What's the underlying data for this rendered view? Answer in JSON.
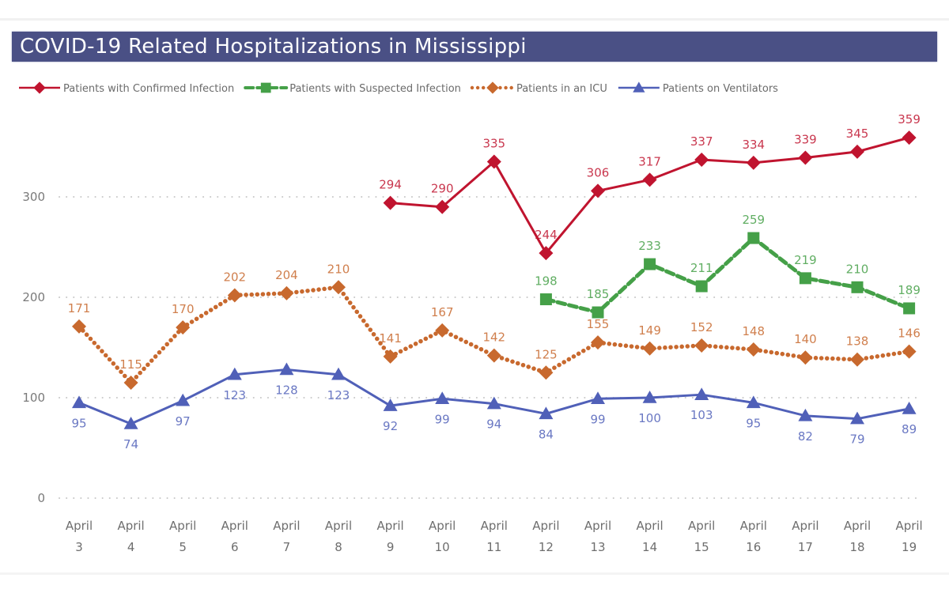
{
  "chart_data": {
    "type": "line",
    "title": "COVID-19 Related Hospitalizations in Mississippi",
    "xlabel": "",
    "ylabel": "",
    "ylim": [
      0,
      360
    ],
    "yticks": [
      0,
      100,
      200,
      300
    ],
    "grid": true,
    "legend_position": "top",
    "categories": [
      [
        "April",
        "3"
      ],
      [
        "April",
        "4"
      ],
      [
        "April",
        "5"
      ],
      [
        "April",
        "6"
      ],
      [
        "April",
        "7"
      ],
      [
        "April",
        "8"
      ],
      [
        "April",
        "9"
      ],
      [
        "April",
        "10"
      ],
      [
        "April",
        "11"
      ],
      [
        "April",
        "12"
      ],
      [
        "April",
        "13"
      ],
      [
        "April",
        "14"
      ],
      [
        "April",
        "15"
      ],
      [
        "April",
        "16"
      ],
      [
        "April",
        "17"
      ],
      [
        "April",
        "18"
      ],
      [
        "April",
        "19"
      ]
    ],
    "series": [
      {
        "name": "Patients with Confirmed Infection",
        "color": "#c0142f",
        "style": "solid",
        "marker": "diamond",
        "label_position": "above",
        "values": [
          null,
          null,
          null,
          null,
          null,
          null,
          294,
          290,
          335,
          244,
          306,
          317,
          337,
          334,
          339,
          345,
          359
        ]
      },
      {
        "name": "Patients with Suspected Infection",
        "color": "#45a048",
        "style": "dashed",
        "marker": "square",
        "label_position": "above",
        "values": [
          null,
          null,
          null,
          null,
          null,
          null,
          null,
          null,
          null,
          198,
          185,
          233,
          211,
          259,
          219,
          210,
          189
        ]
      },
      {
        "name": "Patients in an ICU",
        "color": "#c8692e",
        "style": "dotted",
        "marker": "diamond",
        "label_position": "above",
        "values": [
          171,
          115,
          170,
          202,
          204,
          210,
          141,
          167,
          142,
          125,
          155,
          149,
          152,
          148,
          140,
          138,
          146
        ]
      },
      {
        "name": "Patients on Ventilators",
        "color": "#5060b8",
        "style": "solid",
        "marker": "triangle",
        "label_position": "below",
        "values": [
          95,
          74,
          97,
          123,
          128,
          123,
          92,
          99,
          94,
          84,
          99,
          100,
          103,
          95,
          82,
          79,
          89
        ]
      }
    ]
  }
}
